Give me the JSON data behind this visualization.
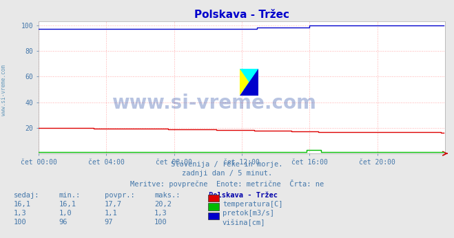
{
  "title": "Polskava - Tržec",
  "title_color": "#0000cc",
  "title_fontsize": 11,
  "bg_color": "#e8e8e8",
  "plot_bg_color": "#ffffff",
  "grid_color": "#ffaaaa",
  "watermark_text": "www.si-vreme.com",
  "watermark_color": "#3355aa",
  "watermark_alpha": 0.35,
  "subtitle_lines": [
    "Slovenija / reke in morje.",
    "zadnji dan / 5 minut.",
    "Meritve: povprečne  Enote: metrične  Črta: ne"
  ],
  "table_headers": [
    "sedaj:",
    "min.:",
    "povpr.:",
    "maks.:",
    "Polskava - Tržec"
  ],
  "table_data": [
    [
      "16,1",
      "16,1",
      "17,7",
      "20,2",
      "temperatura[C]",
      "#dd0000"
    ],
    [
      "1,3",
      "1,0",
      "1,1",
      "1,3",
      "pretok[m3/s]",
      "#00bb00"
    ],
    [
      "100",
      "96",
      "97",
      "100",
      "višina[cm]",
      "#0000cc"
    ]
  ],
  "xticklabels": [
    "čet 00:00",
    "čet 04:00",
    "čet 08:00",
    "čet 12:00",
    "čet 16:00",
    "čet 20:00"
  ],
  "xtick_positions": [
    0,
    48,
    96,
    144,
    192,
    240
  ],
  "yticks": [
    20,
    40,
    60,
    80,
    100
  ],
  "ylim": [
    0,
    103
  ],
  "total_points": 288,
  "line_colors": {
    "temperatura": "#dd0000",
    "pretok": "#00bb00",
    "visina": "#0000cc"
  },
  "sidebar_text": "www.si-vreme.com",
  "sidebar_color": "#6699bb"
}
